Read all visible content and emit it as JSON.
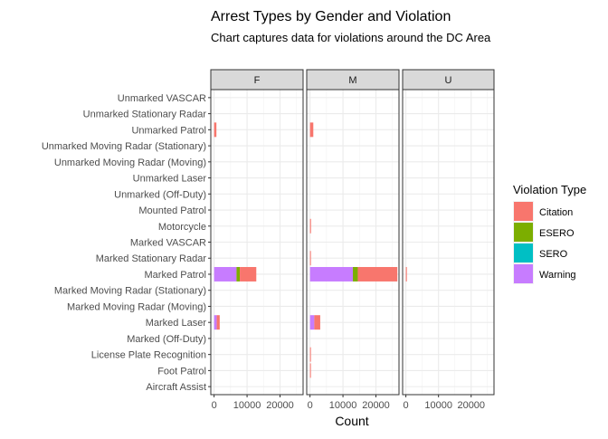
{
  "chart_data": {
    "type": "bar",
    "orientation": "horizontal",
    "stacked": true,
    "faceted": true,
    "title": "Arrest Types by Gender and Violation",
    "subtitle": "Chart captures data for violations around the DC Area",
    "xlabel": "Count",
    "ylabel": "",
    "xlim": [
      -1000,
      27000
    ],
    "x_ticks": [
      0,
      10000,
      20000
    ],
    "x_tick_labels": [
      "0",
      "10000",
      "20000"
    ],
    "categories": [
      "Aircraft Assist",
      "Foot Patrol",
      "License Plate Recognition",
      "Marked (Off-Duty)",
      "Marked Laser",
      "Marked Moving Radar (Moving)",
      "Marked Moving Radar (Stationary)",
      "Marked Patrol",
      "Marked Stationary Radar",
      "Marked VASCAR",
      "Motorcycle",
      "Mounted Patrol",
      "Unmarked (Off-Duty)",
      "Unmarked Laser",
      "Unmarked Moving Radar (Moving)",
      "Unmarked Moving Radar (Stationary)",
      "Unmarked Patrol",
      "Unmarked Stationary Radar",
      "Unmarked VASCAR"
    ],
    "legend": {
      "title": "Violation Type",
      "position": "right",
      "entries": [
        {
          "name": "Citation",
          "color": "#F8766D"
        },
        {
          "name": "ESERO",
          "color": "#7CAE00"
        },
        {
          "name": "SERO",
          "color": "#00BFC4"
        },
        {
          "name": "Warning",
          "color": "#C77CFF"
        }
      ]
    },
    "stack_order": [
      "Warning",
      "SERO",
      "ESERO",
      "Citation"
    ],
    "facets": [
      {
        "label": "F",
        "series": [
          {
            "name": "Citation",
            "values": [
              0,
              0,
              0,
              0,
              900,
              0,
              0,
              5000,
              0,
              0,
              0,
              0,
              0,
              0,
              0,
              0,
              700,
              0,
              0
            ]
          },
          {
            "name": "ESERO",
            "values": [
              0,
              0,
              0,
              0,
              0,
              0,
              0,
              1000,
              0,
              0,
              0,
              0,
              0,
              0,
              0,
              0,
              0,
              0,
              0
            ]
          },
          {
            "name": "SERO",
            "values": [
              0,
              0,
              0,
              0,
              0,
              0,
              0,
              0,
              0,
              0,
              0,
              0,
              0,
              0,
              0,
              0,
              0,
              0,
              0
            ]
          },
          {
            "name": "Warning",
            "values": [
              0,
              0,
              0,
              0,
              800,
              0,
              0,
              6800,
              0,
              0,
              0,
              0,
              0,
              0,
              0,
              0,
              0,
              0,
              0
            ]
          }
        ]
      },
      {
        "label": "M",
        "series": [
          {
            "name": "Citation",
            "values": [
              0,
              250,
              250,
              0,
              1800,
              0,
              0,
              12000,
              250,
              0,
              300,
              0,
              0,
              0,
              0,
              0,
              1000,
              0,
              0
            ]
          },
          {
            "name": "ESERO",
            "values": [
              0,
              0,
              0,
              0,
              0,
              0,
              0,
              1500,
              0,
              0,
              0,
              0,
              0,
              0,
              0,
              0,
              0,
              0,
              0
            ]
          },
          {
            "name": "SERO",
            "values": [
              0,
              0,
              0,
              0,
              0,
              0,
              0,
              0,
              0,
              0,
              0,
              0,
              0,
              0,
              0,
              0,
              0,
              0,
              0
            ]
          },
          {
            "name": "Warning",
            "values": [
              0,
              0,
              0,
              0,
              1300,
              0,
              0,
              13000,
              0,
              0,
              0,
              0,
              0,
              0,
              0,
              0,
              0,
              0,
              0
            ]
          }
        ]
      },
      {
        "label": "U",
        "series": [
          {
            "name": "Citation",
            "values": [
              0,
              0,
              0,
              0,
              0,
              0,
              0,
              300,
              0,
              0,
              0,
              0,
              0,
              0,
              0,
              0,
              0,
              0,
              0
            ]
          },
          {
            "name": "ESERO",
            "values": [
              0,
              0,
              0,
              0,
              0,
              0,
              0,
              0,
              0,
              0,
              0,
              0,
              0,
              0,
              0,
              0,
              0,
              0,
              0
            ]
          },
          {
            "name": "SERO",
            "values": [
              0,
              0,
              0,
              0,
              0,
              0,
              0,
              0,
              0,
              0,
              0,
              0,
              0,
              0,
              0,
              0,
              0,
              0,
              0
            ]
          },
          {
            "name": "Warning",
            "values": [
              0,
              0,
              0,
              0,
              0,
              0,
              0,
              0,
              0,
              0,
              0,
              0,
              0,
              0,
              0,
              0,
              0,
              0,
              0
            ]
          }
        ]
      }
    ]
  }
}
